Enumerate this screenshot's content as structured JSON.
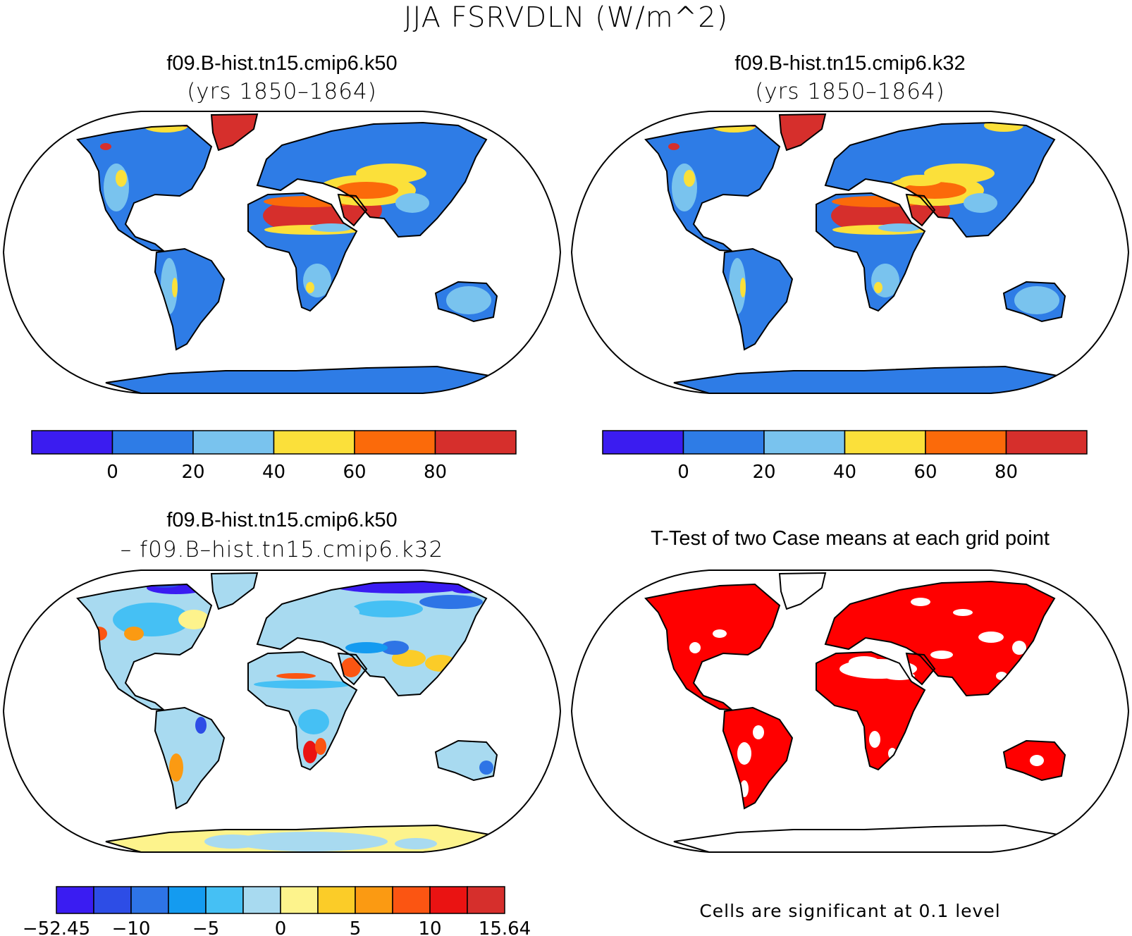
{
  "title": "JJA FSRVDLN (W/m^2)",
  "panels": [
    {
      "title": "f09.B-hist.tn15.cmip6.k50",
      "subtitle": "(yrs 1850–1864)"
    },
    {
      "title": "f09.B-hist.tn15.cmip6.k32",
      "subtitle": "(yrs 1850–1864)"
    },
    {
      "title": "f09.B-hist.tn15.cmip6.k50",
      "subtitle": "– f09.B–hist.tn15.cmip6.k32"
    },
    {
      "title": "T-Test of two Case means at each grid point"
    }
  ],
  "colorbars": {
    "cases": {
      "colors": [
        "#3b1cf0",
        "#2e7ce6",
        "#79c3ee",
        "#fbe03a",
        "#fb6a0a",
        "#d62f2c"
      ],
      "labels": [
        "0",
        "20",
        "40",
        "60",
        "80"
      ]
    },
    "difference": {
      "colors": [
        "#3a1cf2",
        "#2d4de6",
        "#2e74e6",
        "#149bf0",
        "#45c0f4",
        "#a8daf0",
        "#fdf38c",
        "#fbcc28",
        "#fb9a12",
        "#fb5512",
        "#ea1312",
        "#d62f2c"
      ],
      "labels": [
        "−52.45",
        "−10",
        "−5",
        "0",
        "5",
        "10",
        "15.64"
      ]
    }
  },
  "significance_color": "#ff0000",
  "footnote": "Cells are significant at 0.1 level"
}
